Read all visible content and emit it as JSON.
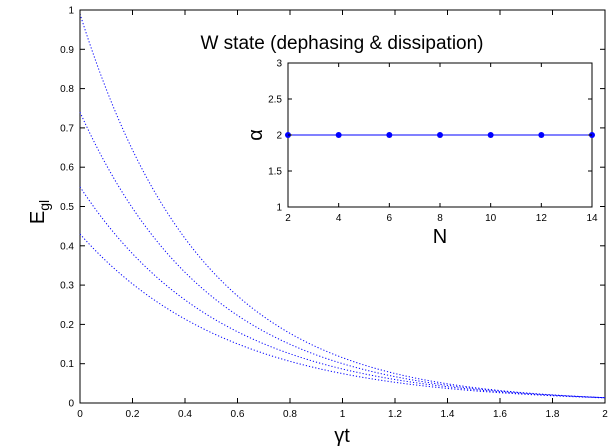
{
  "chart_data": [
    {
      "type": "line",
      "title": "W state (dephasing & dissipation)",
      "xlabel": "γt",
      "ylabel_main": "E",
      "ylabel_sub": "gl",
      "xlim": [
        0,
        2
      ],
      "ylim": [
        0,
        1
      ],
      "xticks": [
        0,
        0.2,
        0.4,
        0.6,
        0.8,
        1,
        1.2,
        1.4,
        1.6,
        1.8,
        2
      ],
      "xtick_labels": [
        "0",
        "0.2",
        "0.4",
        "0.6",
        "0.8",
        "1",
        "1.2",
        "1.4",
        "1.6",
        "1.8",
        "2"
      ],
      "yticks": [
        0,
        0.1,
        0.2,
        0.3,
        0.4,
        0.5,
        0.6,
        0.7,
        0.8,
        0.9,
        1
      ],
      "ytick_labels": [
        "0",
        "0.1",
        "0.2",
        "0.3",
        "0.4",
        "0.5",
        "0.6",
        "0.7",
        "0.8",
        "0.9",
        "1"
      ],
      "line_style": "dotted",
      "color": "#0000ff",
      "series": [
        {
          "y0": 0.99,
          "rate": 2.15
        },
        {
          "y0": 0.74,
          "rate": 2.0
        },
        {
          "y0": 0.55,
          "rate": 1.85
        },
        {
          "y0": 0.43,
          "rate": 1.75
        }
      ]
    },
    {
      "type": "line",
      "xlabel": "N",
      "ylabel": "α",
      "xlim": [
        2,
        14
      ],
      "ylim": [
        1,
        3
      ],
      "xticks": [
        2,
        4,
        6,
        8,
        10,
        12,
        14
      ],
      "xtick_labels": [
        "2",
        "4",
        "6",
        "8",
        "10",
        "12",
        "14"
      ],
      "yticks": [
        1,
        1.5,
        2,
        2.5,
        3
      ],
      "ytick_labels": [
        "1",
        "1.5",
        "2",
        "2.5",
        "3"
      ],
      "color": "#0000ff",
      "x": [
        2,
        4,
        6,
        8,
        10,
        12,
        14
      ],
      "y": [
        2,
        2,
        2,
        2,
        2,
        2,
        2
      ]
    }
  ]
}
